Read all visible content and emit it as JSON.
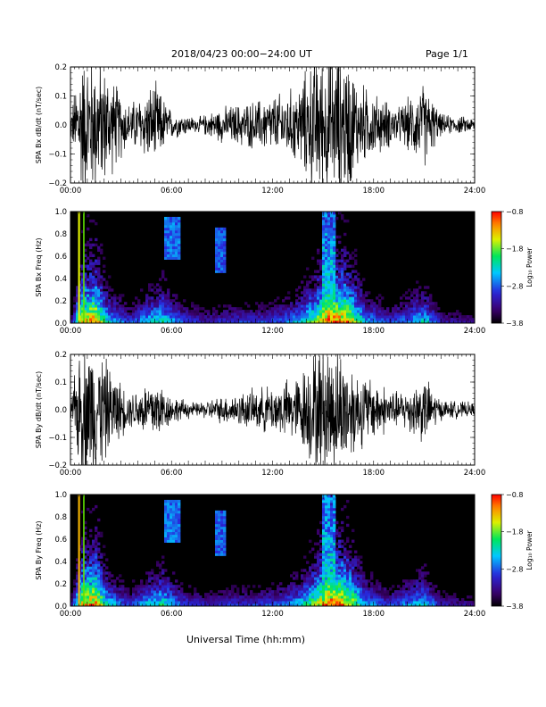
{
  "header": {
    "title": "2018/04/23  00:00−24:00 UT",
    "page": "Page 1/1"
  },
  "xaxis_label": "Universal Time (hh:mm)",
  "x_ticks": [
    "00:00",
    "06:00",
    "12:00",
    "18:00",
    "24:00"
  ],
  "chart_data": [
    {
      "type": "line",
      "ylabel": "SPA Bx dB/dt (nT/sec)",
      "xlim": [
        0,
        24
      ],
      "ylim": [
        -0.2,
        0.2
      ],
      "y_ticks": [
        "0.2",
        "0.1",
        "0.0",
        "−0.1",
        "−0.2"
      ],
      "series": [
        {
          "x": [
            0,
            0.6,
            1.0,
            1.6,
            2.4,
            3.5,
            5.0,
            6.0,
            7.5,
            9.0,
            11.0,
            12.5,
            13.5,
            14.5,
            15.5,
            16.5,
            17.0,
            18.0,
            19.5,
            21.0,
            22.0,
            24.0
          ],
          "amplitude": [
            0.03,
            0.2,
            0.2,
            0.2,
            0.14,
            0.06,
            0.12,
            0.04,
            0.02,
            0.05,
            0.07,
            0.09,
            0.11,
            0.2,
            0.2,
            0.2,
            0.13,
            0.09,
            0.05,
            0.12,
            0.03,
            0.02
          ]
        }
      ]
    },
    {
      "type": "heatmap",
      "ylabel": "SPA Bx Freq (Hz)",
      "xlim": [
        0,
        24
      ],
      "ylim": [
        0,
        1
      ],
      "y_ticks": [
        "1.0",
        "0.8",
        "0.6",
        "0.4",
        "0.2",
        "0.0"
      ],
      "colorbar": {
        "label": "Log₁₀ Power",
        "range": [
          -3.8,
          -0.8
        ],
        "ticks": [
          "−0.8",
          "−1.8",
          "−2.8",
          "−3.8"
        ]
      }
    },
    {
      "type": "line",
      "ylabel": "SPA By dB/dt (nT/sec)",
      "xlim": [
        0,
        24
      ],
      "ylim": [
        -0.2,
        0.2
      ],
      "y_ticks": [
        "0.2",
        "0.1",
        "0.0",
        "−0.1",
        "−0.2"
      ],
      "series": [
        {
          "x": [
            0,
            0.6,
            1.0,
            1.6,
            2.4,
            3.5,
            5.0,
            6.0,
            7.5,
            9.0,
            11.0,
            12.5,
            13.5,
            14.5,
            15.5,
            16.5,
            17.0,
            18.0,
            19.5,
            21.0,
            22.0,
            24.0
          ],
          "amplitude": [
            0.03,
            0.2,
            0.2,
            0.2,
            0.12,
            0.05,
            0.1,
            0.04,
            0.02,
            0.04,
            0.06,
            0.08,
            0.1,
            0.18,
            0.2,
            0.16,
            0.12,
            0.09,
            0.05,
            0.1,
            0.03,
            0.02
          ]
        }
      ]
    },
    {
      "type": "heatmap",
      "ylabel": "SPA By Freq (Hz)",
      "xlim": [
        0,
        24
      ],
      "ylim": [
        0,
        1
      ],
      "y_ticks": [
        "1.0",
        "0.8",
        "0.6",
        "0.4",
        "0.2",
        "0.0"
      ],
      "colorbar": {
        "label": "Log₁₀ Power",
        "range": [
          -3.8,
          -0.8
        ],
        "ticks": [
          "−0.8",
          "−1.8",
          "−2.8",
          "−3.8"
        ]
      }
    }
  ]
}
